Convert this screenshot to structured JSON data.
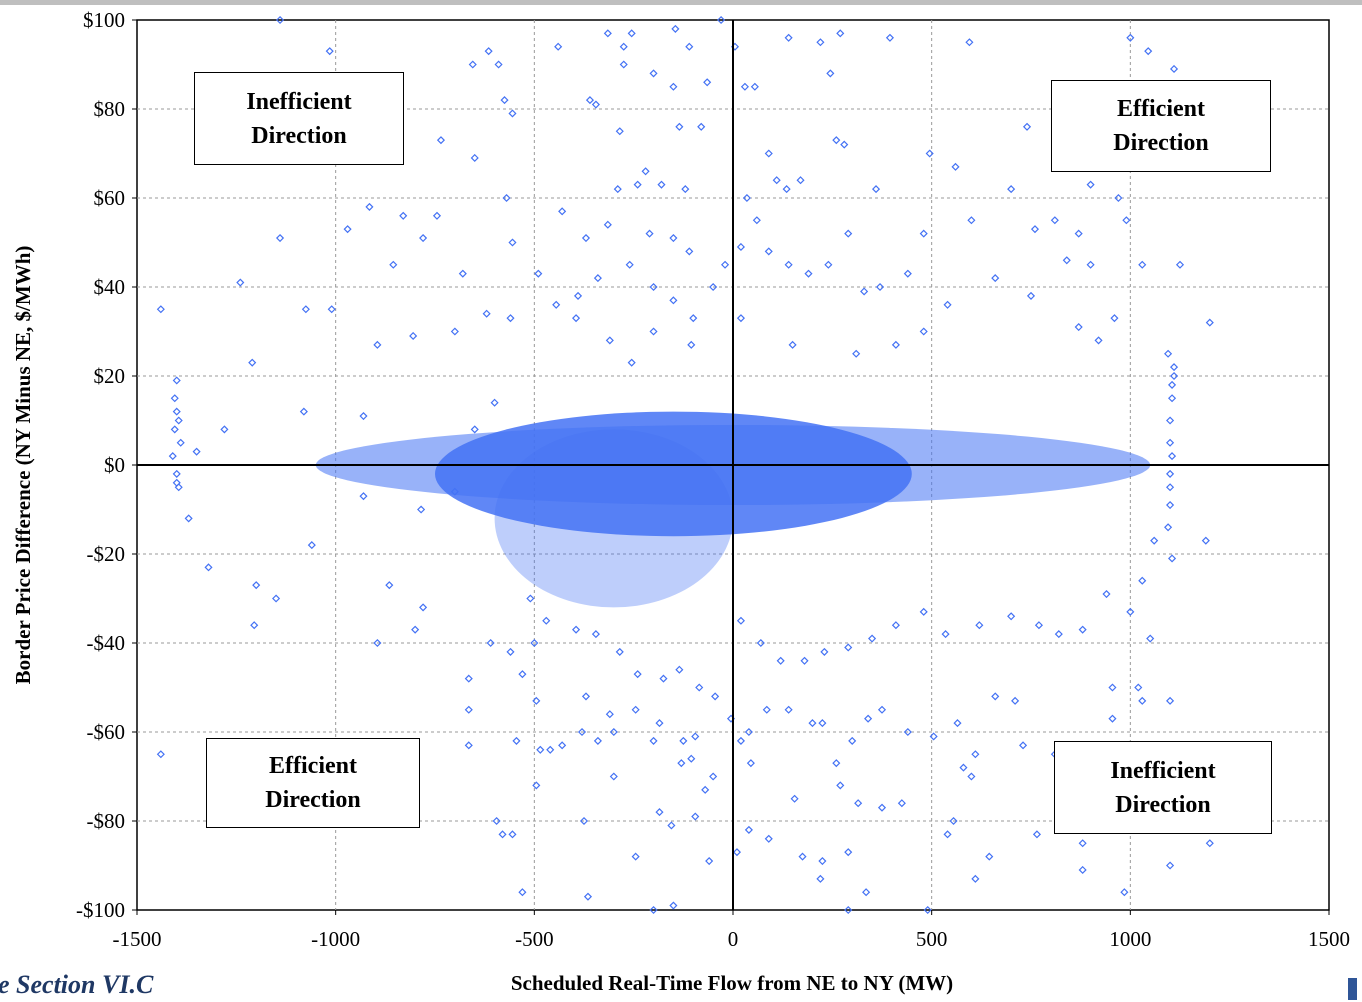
{
  "chart_data": {
    "type": "scatter",
    "title": "",
    "xlabel": "Scheduled Real-Time Flow from NE to NY (MW)",
    "ylabel": "Border Price Difference (NY Minus NE, $/MWh)",
    "xlim": [
      -1500,
      1500
    ],
    "ylim": [
      -100,
      100
    ],
    "x_ticks": [
      "-1500",
      "-1000",
      "-500",
      "0",
      "500",
      "1000",
      "1500"
    ],
    "y_ticks": [
      "$100",
      "$80",
      "$60",
      "$40",
      "$20",
      "$0",
      "-$20",
      "-$40",
      "-$60",
      "-$80",
      "-$100"
    ],
    "grid": true,
    "marker": "diamond-open",
    "series_color": "#4472f4",
    "quadrant_labels": [
      {
        "quadrant": "top-left",
        "line1": "Inefficient",
        "line2": "Direction"
      },
      {
        "quadrant": "top-right",
        "line1": "Efficient",
        "line2": "Direction"
      },
      {
        "quadrant": "bottom-left",
        "line1": "Efficient",
        "line2": "Direction"
      },
      {
        "quadrant": "bottom-right",
        "line1": "Inefficient",
        "line2": "Direction"
      }
    ],
    "series": [
      {
        "points": [
          [
            -1140,
            100
          ],
          [
            -1015,
            93
          ],
          [
            -1440,
            35
          ],
          [
            -1140,
            51
          ],
          [
            -1240,
            41
          ],
          [
            -1010,
            35
          ],
          [
            -1075,
            35
          ],
          [
            -1210,
            23
          ],
          [
            -1080,
            12
          ],
          [
            -1400,
            19
          ],
          [
            -1390,
            5
          ],
          [
            -1350,
            3
          ],
          [
            -1280,
            8
          ],
          [
            -1205,
            -36
          ],
          [
            -1150,
            -30
          ],
          [
            -1320,
            -23
          ],
          [
            -1370,
            -12
          ],
          [
            -1200,
            -27
          ],
          [
            -1440,
            -65
          ],
          [
            -1060,
            -18
          ],
          [
            -735,
            73
          ],
          [
            -780,
            51
          ],
          [
            -830,
            56
          ],
          [
            -915,
            58
          ],
          [
            -855,
            45
          ],
          [
            -805,
            29
          ],
          [
            -895,
            27
          ],
          [
            -970,
            53
          ],
          [
            -745,
            56
          ],
          [
            -930,
            11
          ],
          [
            -785,
            -10
          ],
          [
            -865,
            -27
          ],
          [
            -895,
            -40
          ],
          [
            -800,
            -37
          ],
          [
            -780,
            -32
          ],
          [
            -930,
            -7
          ],
          [
            -655,
            90
          ],
          [
            -615,
            93
          ],
          [
            -590,
            90
          ],
          [
            -575,
            82
          ],
          [
            -650,
            69
          ],
          [
            -555,
            79
          ],
          [
            -680,
            43
          ],
          [
            -570,
            60
          ],
          [
            -555,
            50
          ],
          [
            -700,
            30
          ],
          [
            -620,
            34
          ],
          [
            -560,
            33
          ],
          [
            -650,
            8
          ],
          [
            -600,
            14
          ],
          [
            -700,
            -6
          ],
          [
            -665,
            -48
          ],
          [
            -665,
            -55
          ],
          [
            -665,
            -63
          ],
          [
            -610,
            -40
          ],
          [
            -560,
            -42
          ],
          [
            -595,
            -80
          ],
          [
            -580,
            -83
          ],
          [
            -530,
            -96
          ],
          [
            -555,
            -83
          ],
          [
            -545,
            -62
          ],
          [
            -495,
            -53
          ],
          [
            -440,
            94
          ],
          [
            -315,
            97
          ],
          [
            -275,
            90
          ],
          [
            -255,
            97
          ],
          [
            -275,
            94
          ],
          [
            -360,
            82
          ],
          [
            -345,
            81
          ],
          [
            -200,
            88
          ],
          [
            -150,
            85
          ],
          [
            -145,
            98
          ],
          [
            -110,
            94
          ],
          [
            -135,
            76
          ],
          [
            -80,
            76
          ],
          [
            -65,
            86
          ],
          [
            -30,
            100
          ],
          [
            -285,
            75
          ],
          [
            -290,
            62
          ],
          [
            -220,
            66
          ],
          [
            -240,
            63
          ],
          [
            -180,
            63
          ],
          [
            -120,
            62
          ],
          [
            -315,
            54
          ],
          [
            -210,
            52
          ],
          [
            -150,
            51
          ],
          [
            -110,
            48
          ],
          [
            -370,
            51
          ],
          [
            -430,
            57
          ],
          [
            -490,
            43
          ],
          [
            -445,
            36
          ],
          [
            -390,
            38
          ],
          [
            -340,
            42
          ],
          [
            -260,
            45
          ],
          [
            -200,
            40
          ],
          [
            -150,
            37
          ],
          [
            -100,
            33
          ],
          [
            -50,
            40
          ],
          [
            -20,
            45
          ],
          [
            -395,
            33
          ],
          [
            -310,
            28
          ],
          [
            -255,
            23
          ],
          [
            -200,
            30
          ],
          [
            -105,
            27
          ],
          [
            -395,
            -37
          ],
          [
            -345,
            -38
          ],
          [
            -285,
            -42
          ],
          [
            -240,
            -47
          ],
          [
            -175,
            -48
          ],
          [
            -135,
            -46
          ],
          [
            -85,
            -50
          ],
          [
            -45,
            -52
          ],
          [
            -370,
            -52
          ],
          [
            -310,
            -56
          ],
          [
            -245,
            -55
          ],
          [
            -185,
            -58
          ],
          [
            -125,
            -62
          ],
          [
            -95,
            -61
          ],
          [
            -380,
            -60
          ],
          [
            -460,
            -64
          ],
          [
            -430,
            -63
          ],
          [
            -340,
            -62
          ],
          [
            -300,
            -60
          ],
          [
            -200,
            -62
          ],
          [
            -105,
            -66
          ],
          [
            -50,
            -70
          ],
          [
            -5,
            -57
          ],
          [
            -70,
            -73
          ],
          [
            -130,
            -67
          ],
          [
            -185,
            -78
          ],
          [
            -155,
            -81
          ],
          [
            -95,
            -79
          ],
          [
            -60,
            -89
          ],
          [
            -375,
            -80
          ],
          [
            -300,
            -70
          ],
          [
            -245,
            -88
          ],
          [
            -200,
            -100
          ],
          [
            -150,
            -99
          ],
          [
            -365,
            -97
          ],
          [
            -485,
            -64
          ],
          [
            -495,
            -72
          ],
          [
            -500,
            -40
          ],
          [
            -510,
            -30
          ],
          [
            -470,
            -35
          ],
          [
            -530,
            -47
          ],
          [
            5,
            94
          ],
          [
            55,
            85
          ],
          [
            30,
            85
          ],
          [
            140,
            96
          ],
          [
            220,
            95
          ],
          [
            270,
            97
          ],
          [
            245,
            88
          ],
          [
            395,
            96
          ],
          [
            595,
            95
          ],
          [
            1000,
            96
          ],
          [
            1045,
            93
          ],
          [
            1110,
            89
          ],
          [
            495,
            70
          ],
          [
            560,
            67
          ],
          [
            260,
            73
          ],
          [
            280,
            72
          ],
          [
            90,
            70
          ],
          [
            110,
            64
          ],
          [
            135,
            62
          ],
          [
            170,
            64
          ],
          [
            360,
            62
          ],
          [
            700,
            62
          ],
          [
            740,
            76
          ],
          [
            900,
            63
          ],
          [
            970,
            60
          ],
          [
            990,
            55
          ],
          [
            1125,
            45
          ],
          [
            1030,
            45
          ],
          [
            900,
            45
          ],
          [
            810,
            55
          ],
          [
            760,
            53
          ],
          [
            870,
            52
          ],
          [
            840,
            46
          ],
          [
            750,
            38
          ],
          [
            660,
            42
          ],
          [
            600,
            55
          ],
          [
            480,
            52
          ],
          [
            440,
            43
          ],
          [
            370,
            40
          ],
          [
            330,
            39
          ],
          [
            290,
            52
          ],
          [
            240,
            45
          ],
          [
            190,
            43
          ],
          [
            140,
            45
          ],
          [
            90,
            48
          ],
          [
            60,
            55
          ],
          [
            35,
            60
          ],
          [
            20,
            49
          ],
          [
            1200,
            32
          ],
          [
            1095,
            25
          ],
          [
            960,
            33
          ],
          [
            920,
            28
          ],
          [
            870,
            31
          ],
          [
            540,
            36
          ],
          [
            480,
            30
          ],
          [
            410,
            27
          ],
          [
            310,
            25
          ],
          [
            150,
            27
          ],
          [
            20,
            33
          ],
          [
            1190,
            -17
          ],
          [
            1105,
            -21
          ],
          [
            1060,
            -17
          ],
          [
            1030,
            -26
          ],
          [
            1000,
            -33
          ],
          [
            940,
            -29
          ],
          [
            880,
            -37
          ],
          [
            820,
            -38
          ],
          [
            770,
            -36
          ],
          [
            700,
            -34
          ],
          [
            620,
            -36
          ],
          [
            535,
            -38
          ],
          [
            480,
            -33
          ],
          [
            410,
            -36
          ],
          [
            350,
            -39
          ],
          [
            290,
            -41
          ],
          [
            230,
            -42
          ],
          [
            180,
            -44
          ],
          [
            120,
            -44
          ],
          [
            70,
            -40
          ],
          [
            20,
            -35
          ],
          [
            1100,
            -53
          ],
          [
            1100,
            -66
          ],
          [
            1100,
            -90
          ],
          [
            1020,
            -50
          ],
          [
            955,
            -50
          ],
          [
            955,
            -57
          ],
          [
            1030,
            -53
          ],
          [
            985,
            -96
          ],
          [
            900,
            -80
          ],
          [
            880,
            -85
          ],
          [
            880,
            -91
          ],
          [
            765,
            -83
          ],
          [
            645,
            -88
          ],
          [
            610,
            -93
          ],
          [
            555,
            -80
          ],
          [
            540,
            -83
          ],
          [
            490,
            -100
          ],
          [
            425,
            -76
          ],
          [
            375,
            -77
          ],
          [
            335,
            -96
          ],
          [
            290,
            -100
          ],
          [
            290,
            -87
          ],
          [
            225,
            -89
          ],
          [
            220,
            -93
          ],
          [
            175,
            -88
          ],
          [
            90,
            -84
          ],
          [
            40,
            -82
          ],
          [
            10,
            -87
          ],
          [
            40,
            -60
          ],
          [
            85,
            -55
          ],
          [
            140,
            -55
          ],
          [
            225,
            -58
          ],
          [
            300,
            -62
          ],
          [
            375,
            -55
          ],
          [
            440,
            -60
          ],
          [
            505,
            -61
          ],
          [
            565,
            -58
          ],
          [
            610,
            -65
          ],
          [
            660,
            -52
          ],
          [
            710,
            -53
          ],
          [
            730,
            -63
          ],
          [
            810,
            -65
          ],
          [
            850,
            -70
          ],
          [
            870,
            -64
          ],
          [
            1200,
            -85
          ],
          [
            1110,
            -63
          ],
          [
            1050,
            -39
          ],
          [
            600,
            -70
          ],
          [
            580,
            -68
          ],
          [
            315,
            -76
          ],
          [
            340,
            -57
          ],
          [
            260,
            -67
          ],
          [
            270,
            -72
          ],
          [
            200,
            -58
          ],
          [
            45,
            -67
          ],
          [
            20,
            -62
          ],
          [
            155,
            -75
          ],
          [
            1110,
            20
          ],
          [
            1105,
            15
          ],
          [
            1100,
            10
          ],
          [
            1100,
            5
          ],
          [
            1105,
            2
          ],
          [
            1100,
            -2
          ],
          [
            1100,
            -5
          ],
          [
            1100,
            -9
          ],
          [
            1095,
            -14
          ],
          [
            1110,
            22
          ],
          [
            1105,
            18
          ],
          [
            -1400,
            12
          ],
          [
            -1405,
            8
          ],
          [
            -1410,
            2
          ],
          [
            -1400,
            -2
          ],
          [
            -1395,
            -5
          ],
          [
            -1400,
            -4
          ],
          [
            -1405,
            15
          ],
          [
            -1395,
            10
          ]
        ]
      }
    ]
  },
  "footer_note": "e Section VI.C"
}
